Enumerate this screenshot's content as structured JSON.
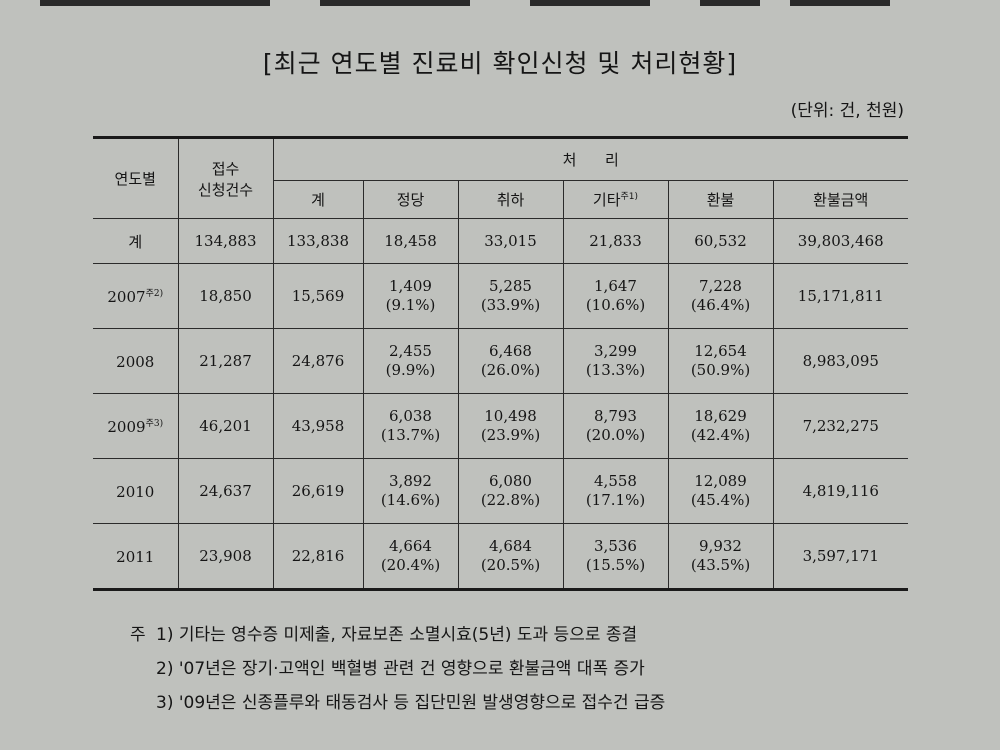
{
  "title": "[최근 연도별 진료비 확인신청 및 처리현황]",
  "unit": "(단위: 건, 천원)",
  "headers": {
    "year": "연도별",
    "received_line1": "접수",
    "received_line2": "신청건수",
    "processing": "처      리",
    "total": "계",
    "valid": "정당",
    "withdrawn": "취하",
    "other": "기타",
    "other_note": "주1)",
    "refund": "환불",
    "refund_amount": "환불금액"
  },
  "total_row": {
    "label": "계",
    "received": "134,883",
    "total": "133,838",
    "valid": "18,458",
    "withdrawn": "33,015",
    "other": "21,833",
    "refund": "60,532",
    "refund_amount": "39,803,468"
  },
  "rows": [
    {
      "year": "2007",
      "note": "주2)",
      "received": "18,850",
      "total": "15,569",
      "valid": "1,409",
      "valid_pct": "(9.1%)",
      "withdrawn": "5,285",
      "withdrawn_pct": "(33.9%)",
      "other": "1,647",
      "other_pct": "(10.6%)",
      "refund": "7,228",
      "refund_pct": "(46.4%)",
      "refund_amount": "15,171,811"
    },
    {
      "year": "2008",
      "note": "",
      "received": "21,287",
      "total": "24,876",
      "valid": "2,455",
      "valid_pct": "(9.9%)",
      "withdrawn": "6,468",
      "withdrawn_pct": "(26.0%)",
      "other": "3,299",
      "other_pct": "(13.3%)",
      "refund": "12,654",
      "refund_pct": "(50.9%)",
      "refund_amount": "8,983,095"
    },
    {
      "year": "2009",
      "note": "주3)",
      "received": "46,201",
      "total": "43,958",
      "valid": "6,038",
      "valid_pct": "(13.7%)",
      "withdrawn": "10,498",
      "withdrawn_pct": "(23.9%)",
      "other": "8,793",
      "other_pct": "(20.0%)",
      "refund": "18,629",
      "refund_pct": "(42.4%)",
      "refund_amount": "7,232,275"
    },
    {
      "year": "2010",
      "note": "",
      "received": "24,637",
      "total": "26,619",
      "valid": "3,892",
      "valid_pct": "(14.6%)",
      "withdrawn": "6,080",
      "withdrawn_pct": "(22.8%)",
      "other": "4,558",
      "other_pct": "(17.1%)",
      "refund": "12,089",
      "refund_pct": "(45.4%)",
      "refund_amount": "4,819,116"
    },
    {
      "year": "2011",
      "note": "",
      "received": "23,908",
      "total": "22,816",
      "valid": "4,664",
      "valid_pct": "(20.4%)",
      "withdrawn": "4,684",
      "withdrawn_pct": "(20.5%)",
      "other": "3,536",
      "other_pct": "(15.5%)",
      "refund": "9,932",
      "refund_pct": "(43.5%)",
      "refund_amount": "3,597,171"
    }
  ],
  "notes": {
    "prefix": "주",
    "n1": "1) 기타는 영수증 미제출, 자료보존 소멸시효(5년) 도과 등으로 종결",
    "n2": "2) '07년은 장기·고액인 백혈병 관련 건 영향으로 환불금액 대폭 증가",
    "n3": "3) '09년은 신종플루와 태동검사 등 집단민원 발생영향으로 접수건 급증"
  }
}
